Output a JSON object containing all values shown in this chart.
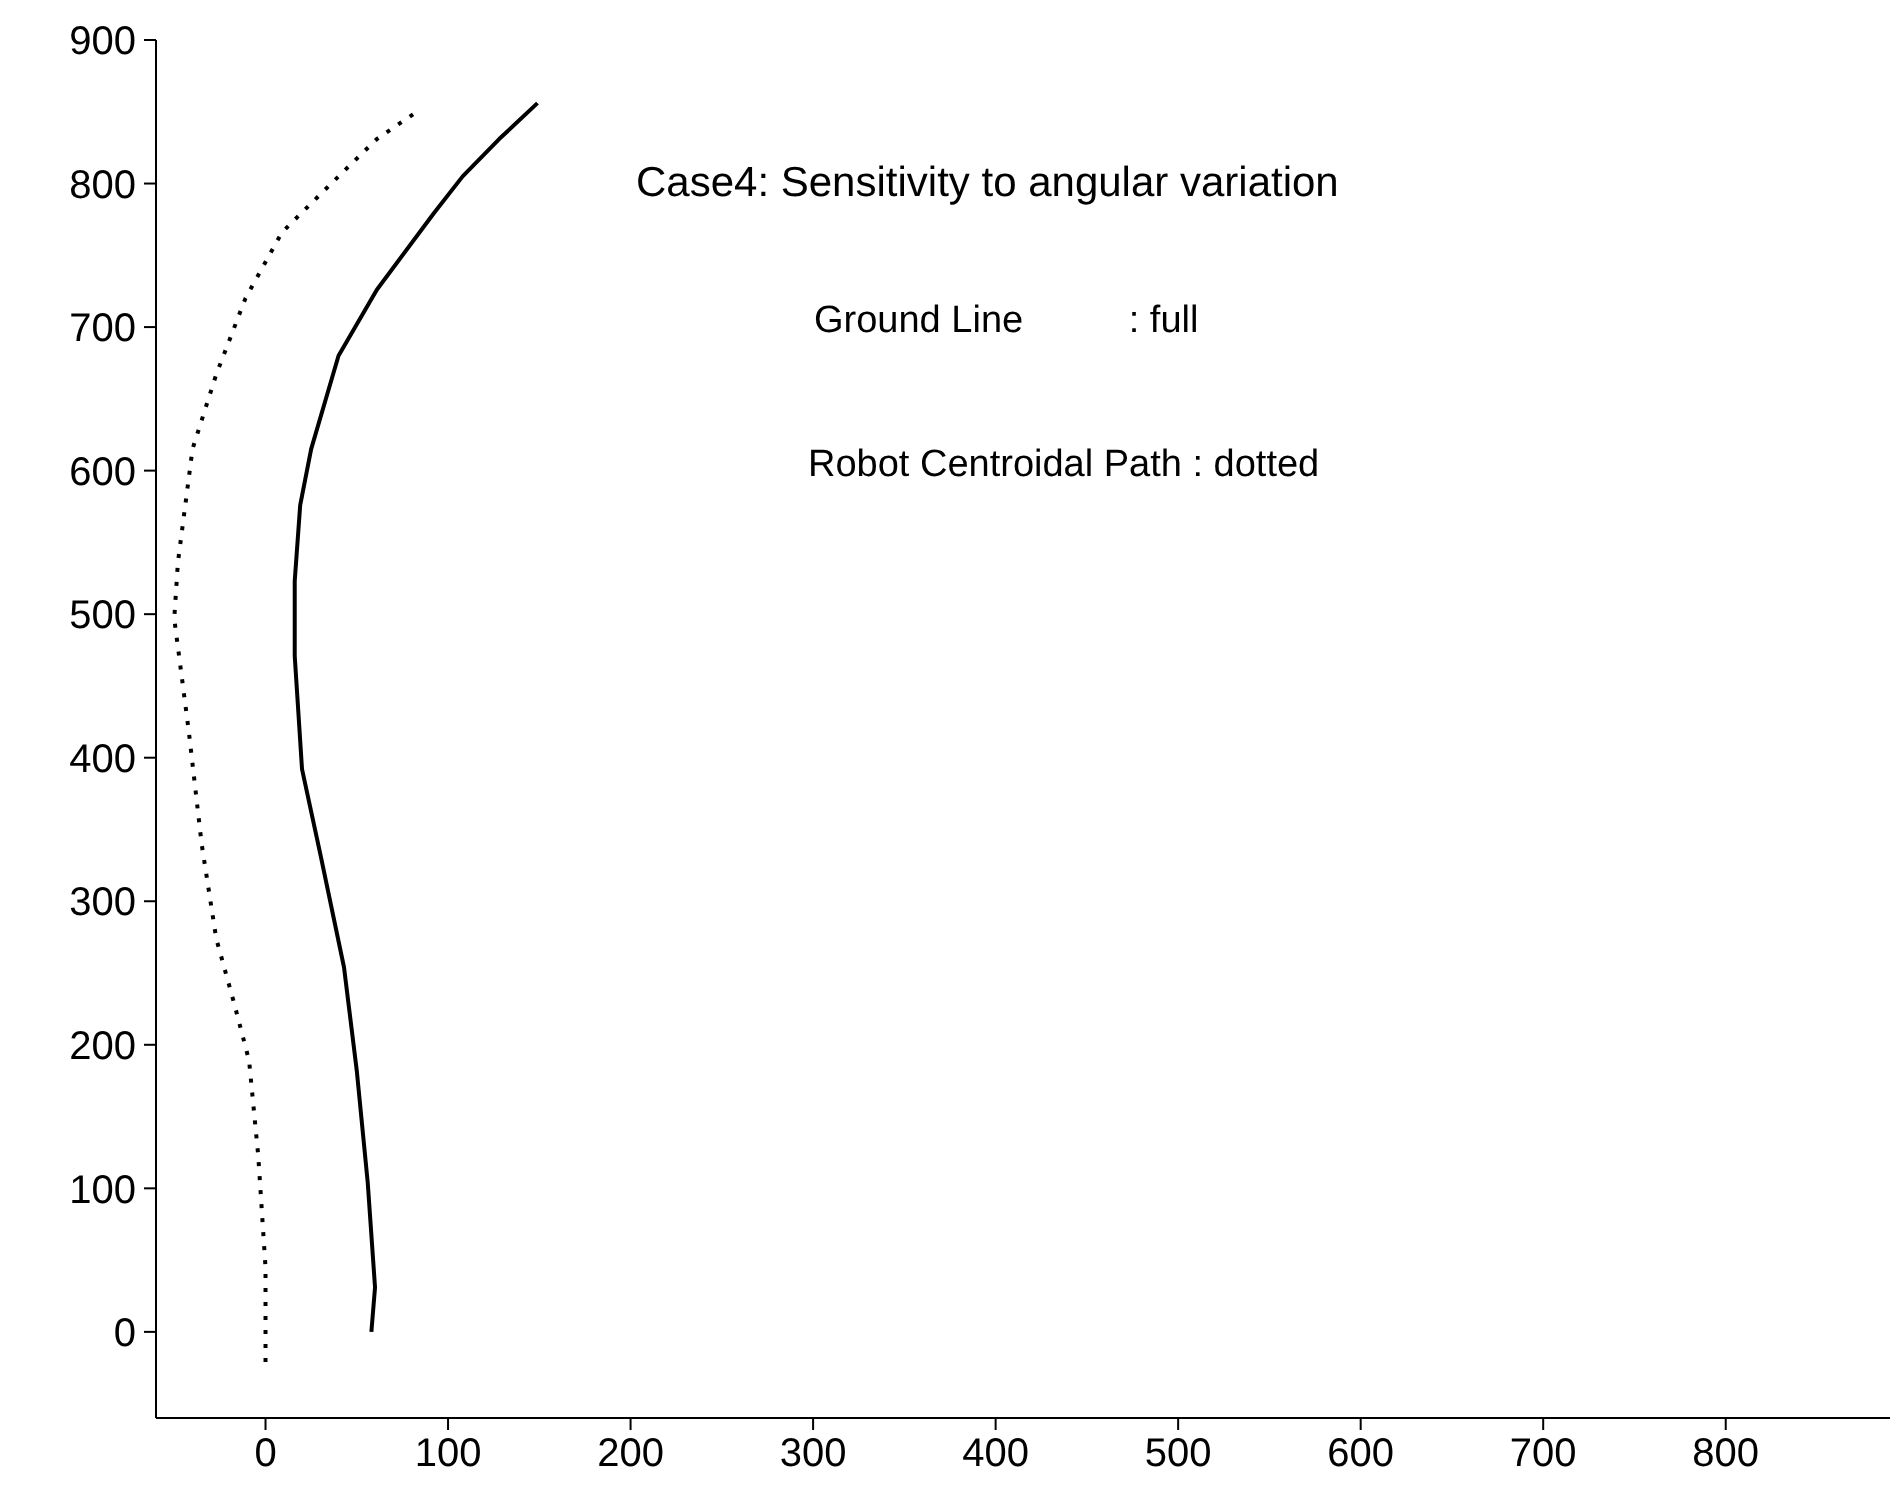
{
  "chart_data": {
    "type": "line",
    "annotations": [
      "Case4: Sensitivity to angular variation",
      "Ground Line          : full",
      "Robot Centroidal Path : dotted"
    ],
    "series": [
      {
        "color": "#000000",
        "line_style": "solid",
        "x": [
          58,
          60,
          56,
          50,
          43,
          30,
          20,
          16,
          16,
          19,
          25,
          40,
          61,
          92,
          108,
          128,
          149
        ],
        "values": [
          0,
          31,
          104,
          182,
          254,
          333,
          392,
          471,
          523,
          576,
          615,
          680,
          726,
          779,
          805,
          831,
          856
        ]
      },
      {
        "color": "#000000",
        "line_style": "dotted",
        "x": [
          0,
          0,
          -4,
          -9,
          -17,
          -27,
          -35,
          -42,
          -50,
          -48,
          -40,
          -27,
          -11,
          9,
          40,
          61,
          84
        ],
        "values": [
          -21,
          45,
          123,
          189,
          228,
          274,
          340,
          418,
          497,
          536,
          615,
          667,
          720,
          766,
          805,
          831,
          851
        ]
      }
    ],
    "xlim": [
      -60,
      890
    ],
    "xticks": [
      0,
      100,
      200,
      300,
      400,
      500,
      600,
      700,
      800
    ],
    "ylim": [
      -60,
      900
    ],
    "yticks": [
      0,
      100,
      200,
      300,
      400,
      500,
      600,
      700,
      800,
      900
    ],
    "grid": false,
    "legend": false,
    "marker": "none"
  }
}
